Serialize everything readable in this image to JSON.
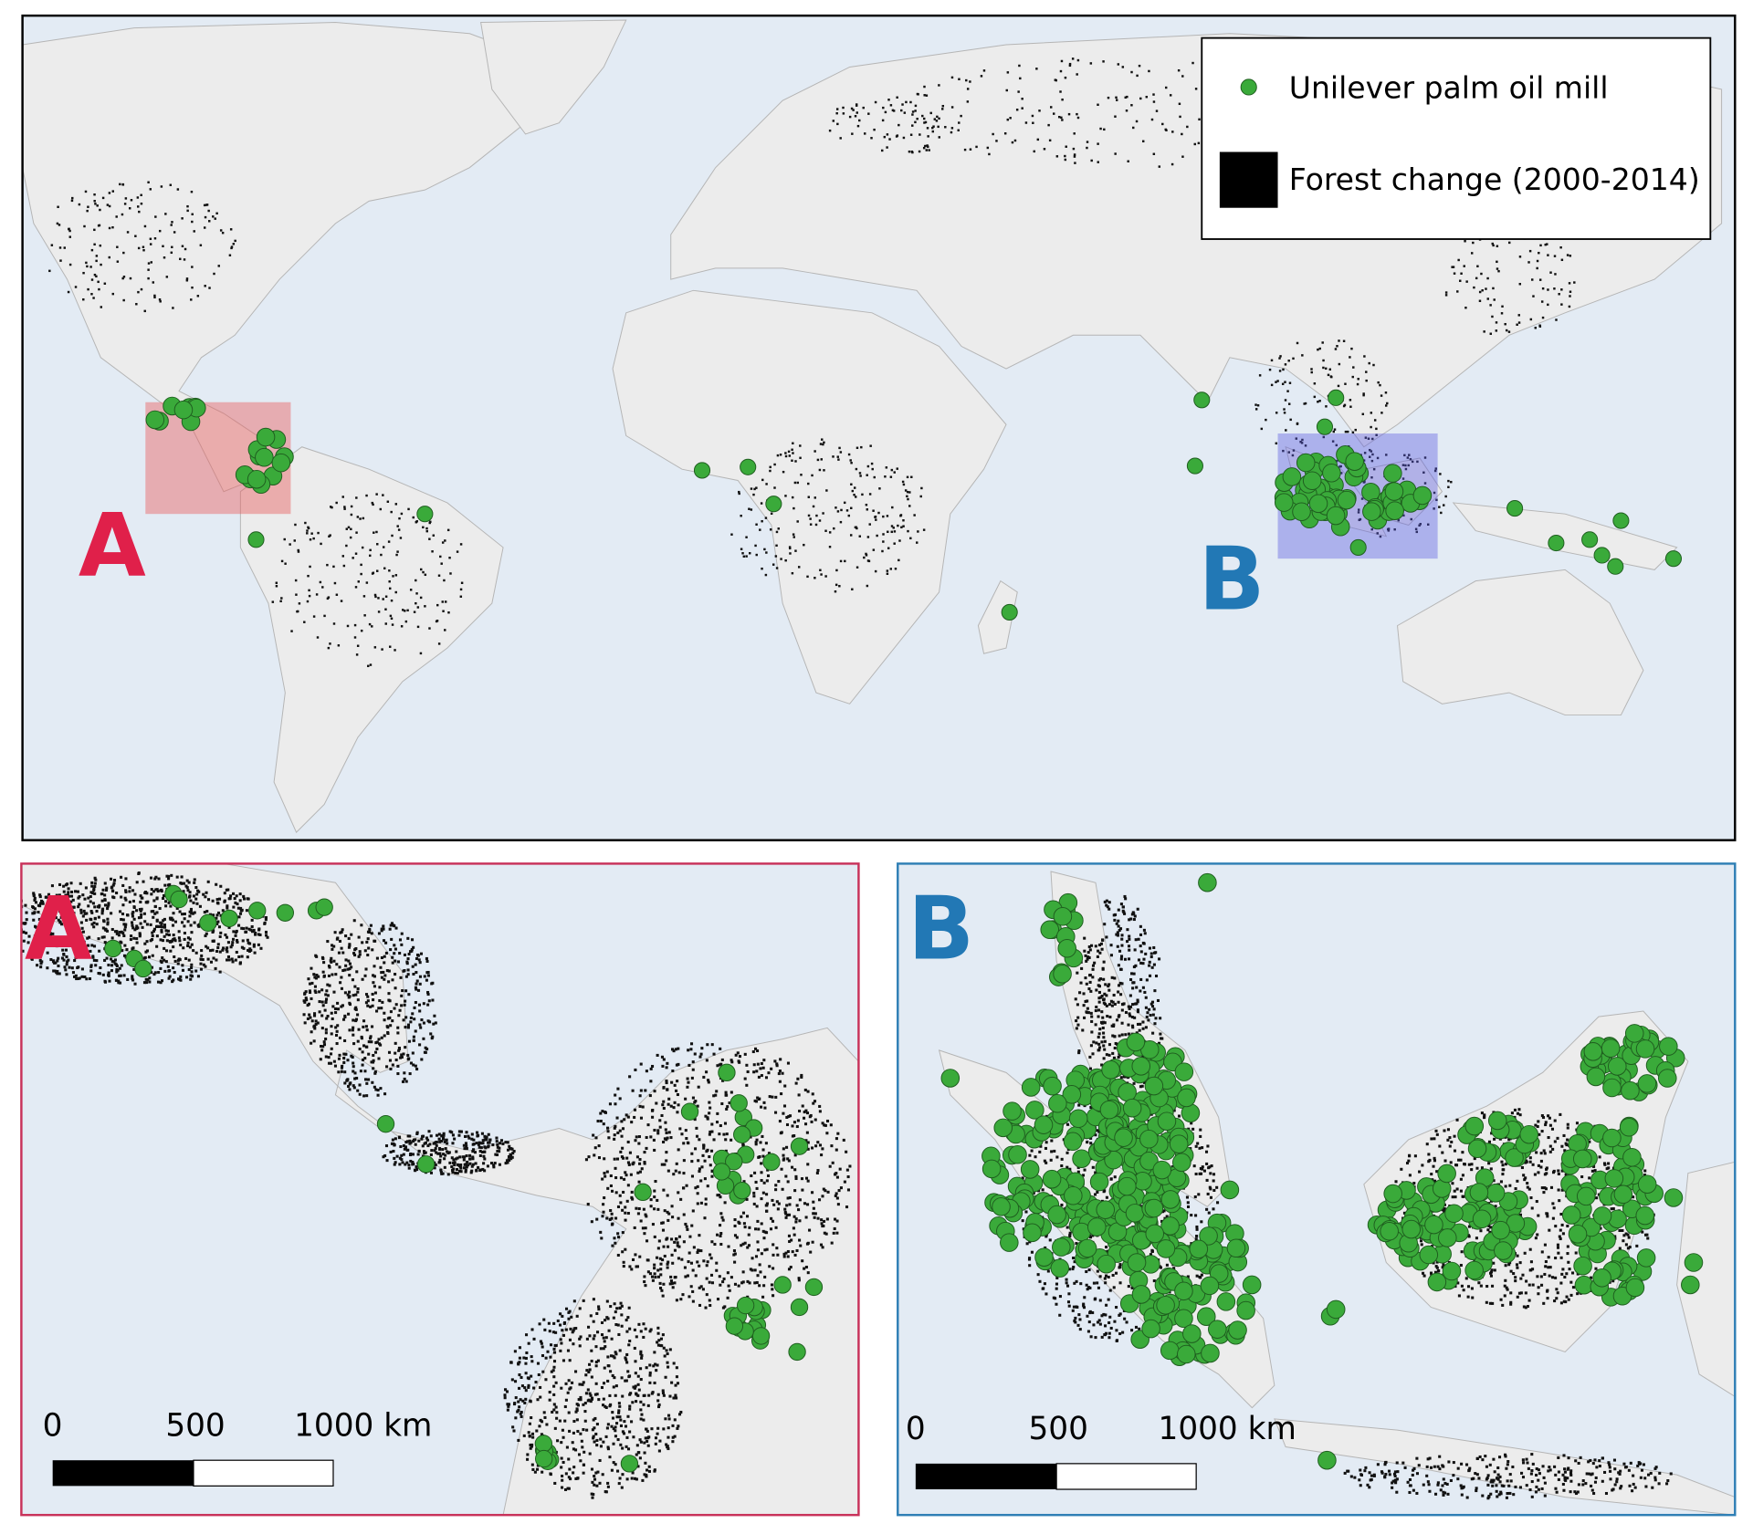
{
  "legend": {
    "items": [
      "Unilever palm oil mill",
      "Forest change (2000-2014)"
    ]
  },
  "main_map": {
    "regions": [
      "A",
      "B"
    ]
  },
  "insets": [
    {
      "label": "A",
      "scale_bar": [
        "0",
        "500",
        "1000 km"
      ]
    },
    {
      "label": "B",
      "scale_bar": [
        "0",
        "500",
        "1000 km"
      ]
    }
  ]
}
